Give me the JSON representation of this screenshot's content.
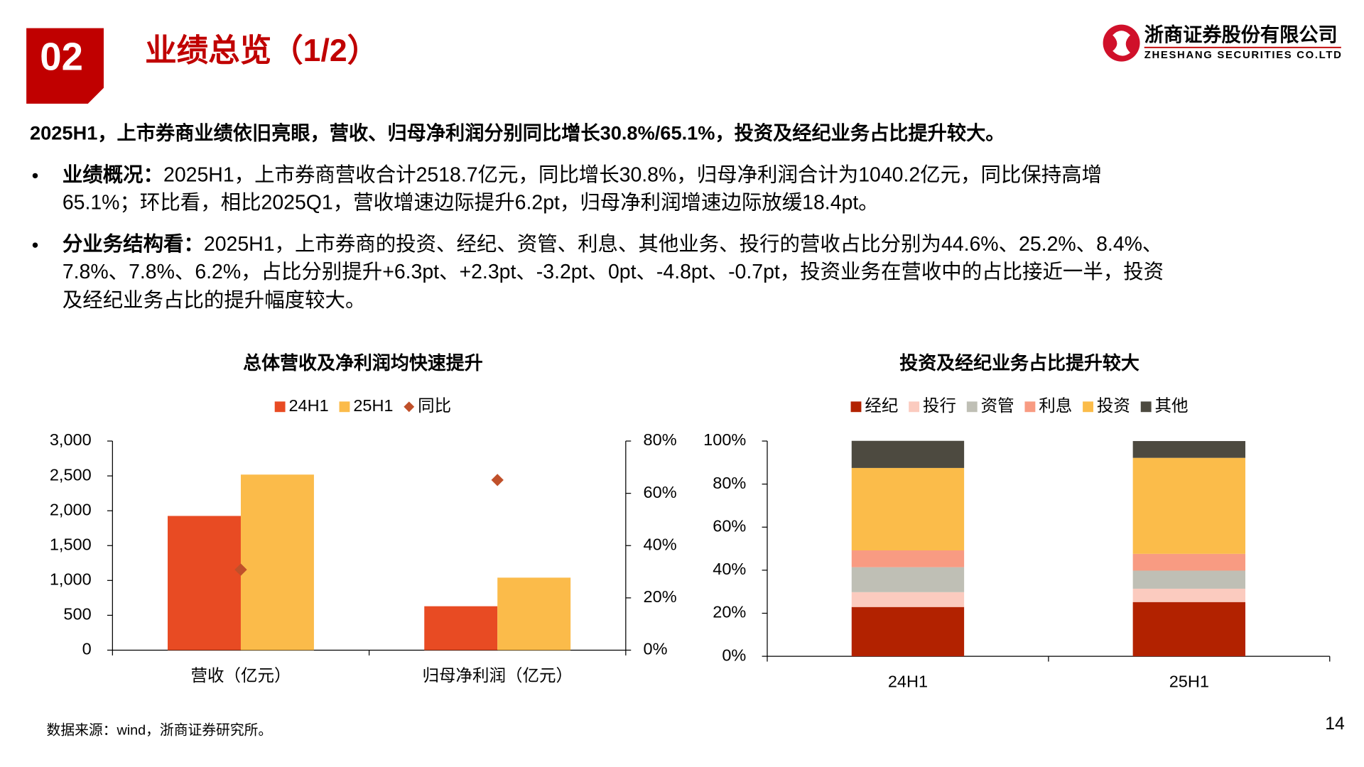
{
  "header": {
    "number": "02",
    "title": "业绩总览（1/2）",
    "company": "浙商证券股份有限公司",
    "company_en": "ZHESHANG SECURITIES CO.LTD"
  },
  "summary": "2025H1，上市券商业绩依旧亮眼，营收、归母净利润分别同比增长30.8%/65.1%，投资及经纪业务占比提升较大。",
  "bullets": [
    {
      "label": "业绩概况：",
      "lines": [
        "2025H1，上市券商营收合计2518.7亿元，同比增长30.8%，归母净利润合计为1040.2亿元，同比保持高增",
        "65.1%；环比看，相比2025Q1，营收增速边际提升6.2pt，归母净利润增速边际放缓18.4pt。"
      ]
    },
    {
      "label": "分业务结构看：",
      "lines": [
        "2025H1，上市券商的投资、经纪、资管、利息、其他业务、投行的营收占比分别为44.6%、25.2%、8.4%、",
        "7.8%、7.8%、6.2%，占比分别提升+6.3pt、+2.3pt、-3.2pt、0pt、-4.8pt、-0.7pt，投资业务在营收中的占比接近一半，投资",
        "及经纪业务占比的提升幅度较大。"
      ]
    }
  ],
  "chart_data": [
    {
      "type": "bar",
      "title": "总体营收及净利润均快速提升",
      "categories": [
        "营收（亿元）",
        "归母净利润（亿元）"
      ],
      "series": [
        {
          "name": "24H1",
          "color": "#e84b23",
          "values": [
            1925.6,
            630.0
          ]
        },
        {
          "name": "25H1",
          "color": "#fbbb4a",
          "values": [
            2518.7,
            1040.2
          ]
        },
        {
          "name": "同比",
          "color": "#c0502a",
          "values": [
            30.8,
            65.1
          ],
          "axis": "y2"
        }
      ],
      "ylim": [
        0,
        3000
      ],
      "yticks": [
        0,
        500,
        {
          "value": 1000,
          "label": "1,000"
        },
        {
          "value": 1500,
          "label": "1,500"
        },
        {
          "value": 2000,
          "label": "2,000"
        },
        {
          "value": 2500,
          "label": "2,500"
        },
        {
          "value": 3000,
          "label": "3,000"
        }
      ],
      "y2lim": [
        0,
        80
      ],
      "y2ticks": [
        {
          "value": 0,
          "label": "0%"
        },
        {
          "value": 20,
          "label": "20%"
        },
        {
          "value": 40,
          "label": "40%"
        },
        {
          "value": 60,
          "label": "60%"
        },
        {
          "value": 80,
          "label": "80%"
        }
      ]
    },
    {
      "type": "bar",
      "stacked": true,
      "title": "投资及经纪业务占比提升较大",
      "categories": [
        "24H1",
        "25H1"
      ],
      "series": [
        {
          "name": "经纪",
          "color": "#b22200",
          "values": [
            22.9,
            25.2
          ]
        },
        {
          "name": "投行",
          "color": "#fbcbbf",
          "values": [
            6.9,
            6.2
          ]
        },
        {
          "name": "资管",
          "color": "#bfbfb5",
          "values": [
            11.6,
            8.4
          ]
        },
        {
          "name": "利息",
          "color": "#f89b82",
          "values": [
            7.8,
            7.8
          ]
        },
        {
          "name": "投资",
          "color": "#fbbc4a",
          "values": [
            38.3,
            44.6
          ]
        },
        {
          "name": "其他",
          "color": "#4d4a40",
          "values": [
            12.6,
            7.8
          ]
        }
      ],
      "ylim": [
        0,
        100
      ],
      "yticks": [
        {
          "value": 0,
          "label": "0%"
        },
        {
          "value": 20,
          "label": "20%"
        },
        {
          "value": 40,
          "label": "40%"
        },
        {
          "value": 60,
          "label": "60%"
        },
        {
          "value": 80,
          "label": "80%"
        },
        {
          "value": 100,
          "label": "100%"
        }
      ]
    }
  ],
  "source": "数据来源：wind，浙商证券研究所。",
  "page_number": "14"
}
